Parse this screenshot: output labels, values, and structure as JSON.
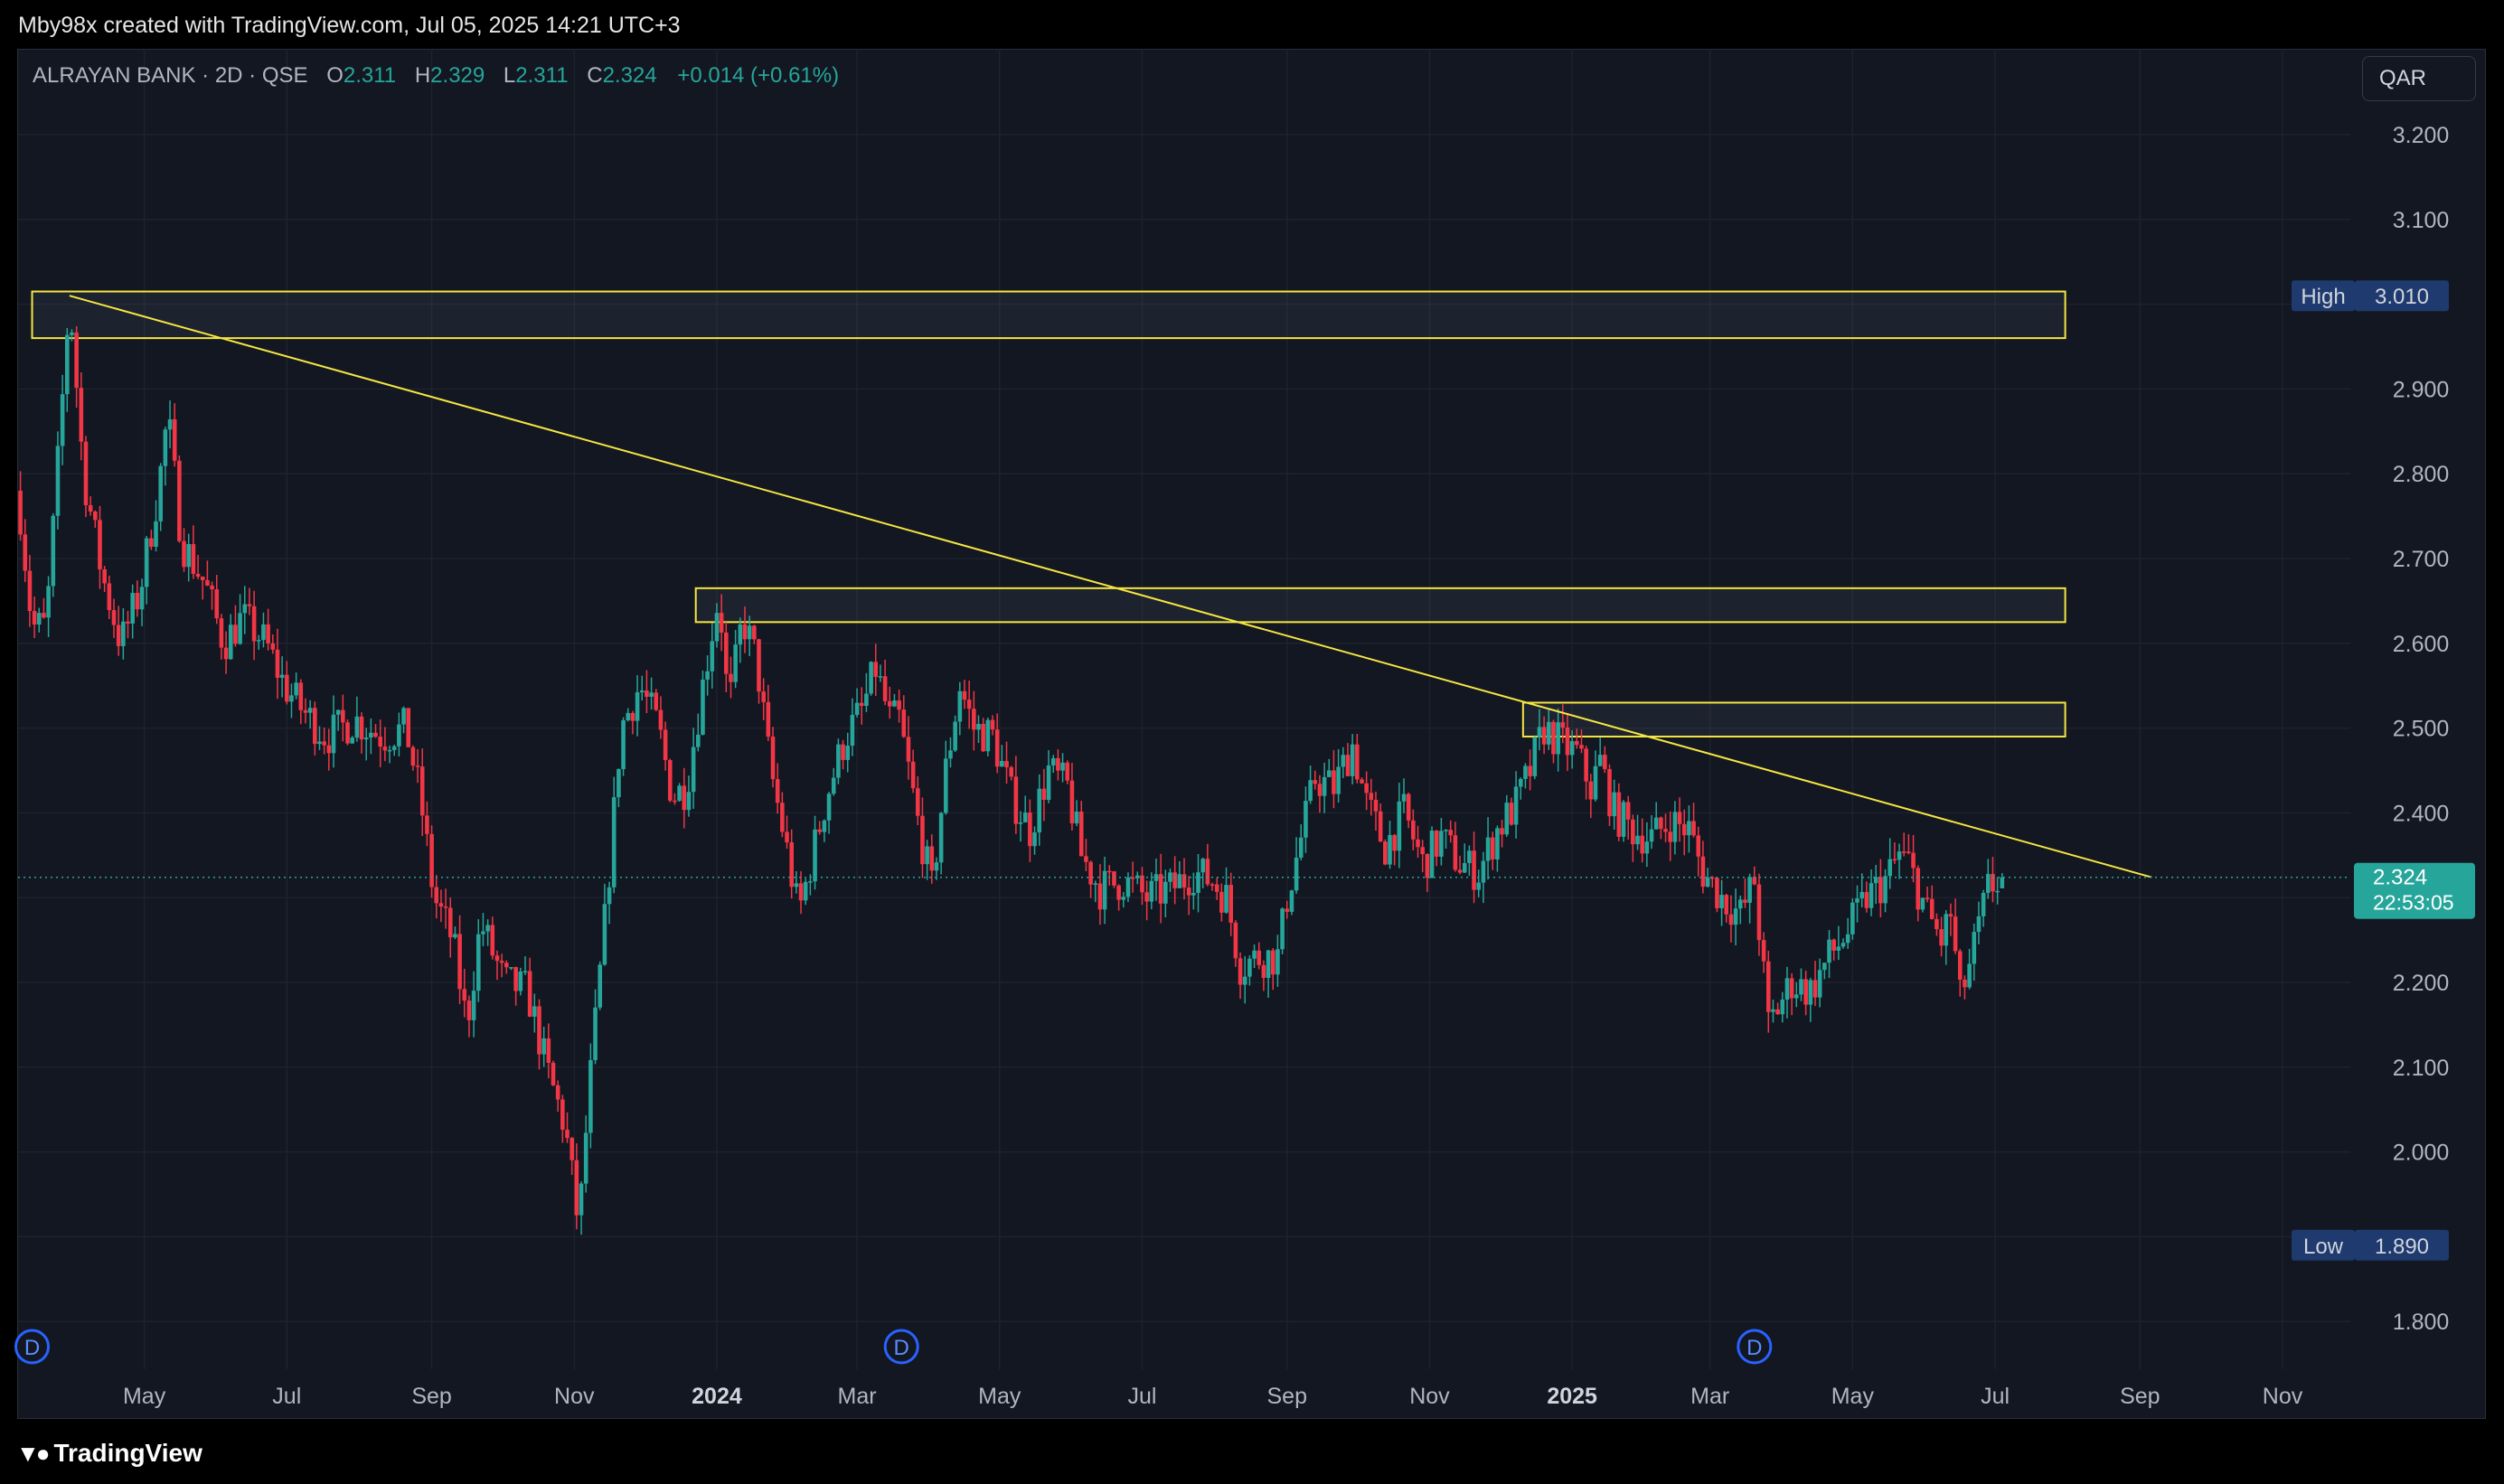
{
  "header": {
    "caption": "Mby98x created with TradingView.com, Jul 05, 2025 14:21 UTC+3"
  },
  "legend": {
    "symbol": "ALRAYAN BANK · 2D · QSE",
    "o_label": "O",
    "o_value": "2.311",
    "h_label": "H",
    "h_value": "2.329",
    "l_label": "L",
    "l_value": "2.311",
    "c_label": "C",
    "c_value": "2.324",
    "change": "+0.014 (+0.61%)"
  },
  "currency_button": "QAR",
  "footer": {
    "logo_text": "TradingView"
  },
  "colors": {
    "up": "#26a69a",
    "down": "#f23645",
    "annotation": "#f5e642",
    "background": "#131722",
    "grid": "#1e222d",
    "label_bg": "#1e3a6e"
  },
  "chart_data": {
    "type": "candlestick",
    "timeframe": "2D",
    "y_axis": {
      "ticks": [
        "3.200",
        "3.100",
        "2.900",
        "2.800",
        "2.700",
        "2.600",
        "2.500",
        "2.400",
        "2.200",
        "2.100",
        "2.000",
        "1.800"
      ],
      "ylim": [
        1.75,
        3.25
      ]
    },
    "x_axis": {
      "ticks": [
        {
          "label": "May",
          "date": "2023-05-01"
        },
        {
          "label": "Jul",
          "date": "2023-07-01"
        },
        {
          "label": "Sep",
          "date": "2023-09-01"
        },
        {
          "label": "Nov",
          "date": "2023-11-01"
        },
        {
          "label": "2024",
          "date": "2024-01-01",
          "bold": true
        },
        {
          "label": "Mar",
          "date": "2024-03-01"
        },
        {
          "label": "May",
          "date": "2024-05-01"
        },
        {
          "label": "Jul",
          "date": "2024-07-01"
        },
        {
          "label": "Sep",
          "date": "2024-09-01"
        },
        {
          "label": "Nov",
          "date": "2024-11-01"
        },
        {
          "label": "2025",
          "date": "2025-01-01",
          "bold": true
        },
        {
          "label": "Mar",
          "date": "2025-03-01"
        },
        {
          "label": "May",
          "date": "2025-05-01"
        },
        {
          "label": "Jul",
          "date": "2025-07-01"
        },
        {
          "label": "Sep",
          "date": "2025-09-01"
        },
        {
          "label": "Nov",
          "date": "2025-11-01"
        }
      ],
      "xlim": [
        "2023-03-08",
        "2025-11-30"
      ]
    },
    "price_path": [
      {
        "date": "2023-03-08",
        "price": 2.78
      },
      {
        "date": "2023-03-14",
        "price": 2.62
      },
      {
        "date": "2023-03-20",
        "price": 2.62
      },
      {
        "date": "2023-03-26",
        "price": 2.85
      },
      {
        "date": "2023-03-30",
        "price": 3.01
      },
      {
        "date": "2023-04-05",
        "price": 2.8
      },
      {
        "date": "2023-04-13",
        "price": 2.68
      },
      {
        "date": "2023-04-21",
        "price": 2.6
      },
      {
        "date": "2023-04-29",
        "price": 2.66
      },
      {
        "date": "2023-05-07",
        "price": 2.78
      },
      {
        "date": "2023-05-11",
        "price": 2.87
      },
      {
        "date": "2023-05-17",
        "price": 2.72
      },
      {
        "date": "2023-05-27",
        "price": 2.67
      },
      {
        "date": "2023-06-04",
        "price": 2.6
      },
      {
        "date": "2023-06-12",
        "price": 2.63
      },
      {
        "date": "2023-06-22",
        "price": 2.6
      },
      {
        "date": "2023-06-30",
        "price": 2.55
      },
      {
        "date": "2023-07-08",
        "price": 2.52
      },
      {
        "date": "2023-07-18",
        "price": 2.49
      },
      {
        "date": "2023-07-30",
        "price": 2.51
      },
      {
        "date": "2023-08-11",
        "price": 2.49
      },
      {
        "date": "2023-08-21",
        "price": 2.5
      },
      {
        "date": "2023-08-27",
        "price": 2.42
      },
      {
        "date": "2023-09-02",
        "price": 2.3
      },
      {
        "date": "2023-09-10",
        "price": 2.25
      },
      {
        "date": "2023-09-16",
        "price": 2.15
      },
      {
        "date": "2023-09-22",
        "price": 2.27
      },
      {
        "date": "2023-10-02",
        "price": 2.2
      },
      {
        "date": "2023-10-12",
        "price": 2.19
      },
      {
        "date": "2023-10-20",
        "price": 2.1
      },
      {
        "date": "2023-10-28",
        "price": 2.03
      },
      {
        "date": "2023-11-03",
        "price": 1.91
      },
      {
        "date": "2023-11-07",
        "price": 2.06
      },
      {
        "date": "2023-11-15",
        "price": 2.3
      },
      {
        "date": "2023-11-21",
        "price": 2.5
      },
      {
        "date": "2023-11-29",
        "price": 2.55
      },
      {
        "date": "2023-12-07",
        "price": 2.5
      },
      {
        "date": "2023-12-13",
        "price": 2.42
      },
      {
        "date": "2023-12-19",
        "price": 2.43
      },
      {
        "date": "2023-12-23",
        "price": 2.5
      },
      {
        "date": "2023-12-29",
        "price": 2.6
      },
      {
        "date": "2024-01-02",
        "price": 2.66
      },
      {
        "date": "2024-01-06",
        "price": 2.52
      },
      {
        "date": "2024-01-12",
        "price": 2.63
      },
      {
        "date": "2024-01-18",
        "price": 2.58
      },
      {
        "date": "2024-01-24",
        "price": 2.45
      },
      {
        "date": "2024-01-30",
        "price": 2.37
      },
      {
        "date": "2024-02-05",
        "price": 2.28
      },
      {
        "date": "2024-02-11",
        "price": 2.35
      },
      {
        "date": "2024-02-17",
        "price": 2.42
      },
      {
        "date": "2024-02-25",
        "price": 2.49
      },
      {
        "date": "2024-03-03",
        "price": 2.52
      },
      {
        "date": "2024-03-09",
        "price": 2.57
      },
      {
        "date": "2024-03-15",
        "price": 2.51
      },
      {
        "date": "2024-03-19",
        "price": 2.51
      },
      {
        "date": "2024-03-27",
        "price": 2.39
      },
      {
        "date": "2024-04-02",
        "price": 2.31
      },
      {
        "date": "2024-04-08",
        "price": 2.45
      },
      {
        "date": "2024-04-14",
        "price": 2.55
      },
      {
        "date": "2024-04-20",
        "price": 2.5
      },
      {
        "date": "2024-04-28",
        "price": 2.49
      },
      {
        "date": "2024-05-06",
        "price": 2.42
      },
      {
        "date": "2024-05-14",
        "price": 2.38
      },
      {
        "date": "2024-05-22",
        "price": 2.45
      },
      {
        "date": "2024-05-30",
        "price": 2.43
      },
      {
        "date": "2024-06-05",
        "price": 2.35
      },
      {
        "date": "2024-06-13",
        "price": 2.31
      },
      {
        "date": "2024-06-23",
        "price": 2.32
      },
      {
        "date": "2024-07-03",
        "price": 2.3
      },
      {
        "date": "2024-07-13",
        "price": 2.31
      },
      {
        "date": "2024-07-23",
        "price": 2.33
      },
      {
        "date": "2024-07-31",
        "price": 2.32
      },
      {
        "date": "2024-08-06",
        "price": 2.3
      },
      {
        "date": "2024-08-12",
        "price": 2.22
      },
      {
        "date": "2024-08-20",
        "price": 2.23
      },
      {
        "date": "2024-08-28",
        "price": 2.23
      },
      {
        "date": "2024-09-01",
        "price": 2.3
      },
      {
        "date": "2024-09-07",
        "price": 2.37
      },
      {
        "date": "2024-09-13",
        "price": 2.44
      },
      {
        "date": "2024-09-21",
        "price": 2.43
      },
      {
        "date": "2024-09-29",
        "price": 2.48
      },
      {
        "date": "2024-10-05",
        "price": 2.41
      },
      {
        "date": "2024-10-13",
        "price": 2.36
      },
      {
        "date": "2024-10-21",
        "price": 2.4
      },
      {
        "date": "2024-10-29",
        "price": 2.34
      },
      {
        "date": "2024-11-06",
        "price": 2.37
      },
      {
        "date": "2024-11-14",
        "price": 2.34
      },
      {
        "date": "2024-11-22",
        "price": 2.33
      },
      {
        "date": "2024-11-30",
        "price": 2.38
      },
      {
        "date": "2024-12-08",
        "price": 2.41
      },
      {
        "date": "2024-12-14",
        "price": 2.45
      },
      {
        "date": "2024-12-20",
        "price": 2.5
      },
      {
        "date": "2024-12-28",
        "price": 2.48
      },
      {
        "date": "2025-01-03",
        "price": 2.47
      },
      {
        "date": "2025-01-09",
        "price": 2.43
      },
      {
        "date": "2025-01-13",
        "price": 2.46
      },
      {
        "date": "2025-01-19",
        "price": 2.4
      },
      {
        "date": "2025-01-27",
        "price": 2.38
      },
      {
        "date": "2025-02-04",
        "price": 2.37
      },
      {
        "date": "2025-02-12",
        "price": 2.39
      },
      {
        "date": "2025-02-20",
        "price": 2.38
      },
      {
        "date": "2025-02-26",
        "price": 2.33
      },
      {
        "date": "2025-03-06",
        "price": 2.3
      },
      {
        "date": "2025-03-14",
        "price": 2.28
      },
      {
        "date": "2025-03-20",
        "price": 2.32
      },
      {
        "date": "2025-03-26",
        "price": 2.15
      },
      {
        "date": "2025-03-30",
        "price": 2.17
      },
      {
        "date": "2025-04-05",
        "price": 2.2
      },
      {
        "date": "2025-04-13",
        "price": 2.19
      },
      {
        "date": "2025-04-21",
        "price": 2.23
      },
      {
        "date": "2025-04-29",
        "price": 2.26
      },
      {
        "date": "2025-05-07",
        "price": 2.3
      },
      {
        "date": "2025-05-15",
        "price": 2.32
      },
      {
        "date": "2025-05-21",
        "price": 2.35
      },
      {
        "date": "2025-05-25",
        "price": 2.34
      },
      {
        "date": "2025-06-02",
        "price": 2.28
      },
      {
        "date": "2025-06-08",
        "price": 2.25
      },
      {
        "date": "2025-06-12",
        "price": 2.28
      },
      {
        "date": "2025-06-16",
        "price": 2.18
      },
      {
        "date": "2025-06-22",
        "price": 2.24
      },
      {
        "date": "2025-06-28",
        "price": 2.31
      },
      {
        "date": "2025-07-04",
        "price": 2.324
      }
    ],
    "last_candle": {
      "date": "2025-07-04",
      "open": 2.311,
      "high": 2.329,
      "low": 2.311,
      "close": 2.324
    },
    "current_price": {
      "value": "2.324",
      "countdown": "22:53:05"
    },
    "high_marker": {
      "label": "High",
      "value": "3.010"
    },
    "low_marker": {
      "label": "Low",
      "value": "1.890"
    },
    "dividend_markers": [
      {
        "date": "2023-03-14",
        "label": "D"
      },
      {
        "date": "2024-03-20",
        "label": "D"
      },
      {
        "date": "2025-03-20",
        "label": "D"
      }
    ],
    "annotations": {
      "trendline": [
        {
          "date": "2023-03-30",
          "price": 3.01
        },
        {
          "date": "2025-09-06",
          "price": 2.324
        }
      ],
      "zones": [
        {
          "from": "2023-03-14",
          "to": "2025-07-31",
          "low": 2.96,
          "high": 3.015
        },
        {
          "from": "2023-12-23",
          "to": "2025-07-31",
          "low": 2.625,
          "high": 2.665
        },
        {
          "from": "2024-12-11",
          "to": "2025-07-31",
          "low": 2.49,
          "high": 2.53
        }
      ]
    }
  }
}
